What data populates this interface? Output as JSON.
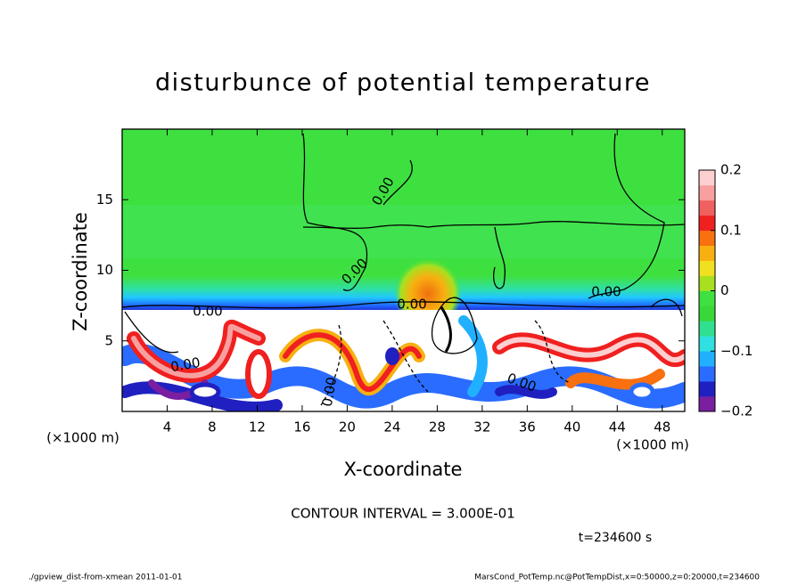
{
  "chart_data": {
    "type": "contour",
    "title": "disturbunce of potential temperature",
    "x_label": "X-coordinate",
    "y_label": "Z-coordinate",
    "x_unit_left": "(×1000 m)",
    "x_unit_right": "(×1000 m)",
    "xlim": [
      0,
      50
    ],
    "xticks": [
      4,
      8,
      12,
      16,
      20,
      24,
      28,
      32,
      36,
      40,
      44,
      48
    ],
    "ylim": [
      0,
      20
    ],
    "yticks": [
      5,
      10,
      15
    ],
    "colorbar": {
      "lim": [
        -0.2,
        0.2
      ],
      "ticks": [
        {
          "value": -0.2,
          "label": "−0.2"
        },
        {
          "value": -0.1,
          "label": "−0.1"
        },
        0,
        0.1,
        0.2
      ],
      "colors": [
        "#7a1fa0",
        "#2020c0",
        "#2a6cff",
        "#20b0ff",
        "#30e0e0",
        "#30e090",
        "#38d838",
        "#40e040",
        "#a8e020",
        "#f0e020",
        "#f8b010",
        "#f87010",
        "#f02020",
        "#f06060",
        "#f8a0a0",
        "#fcd0d0"
      ]
    },
    "contour_label": "0.00",
    "contour_interval": "CONTOUR INTERVAL = 3.000E-01",
    "time_label": "t=234600 s",
    "footer_left": "./gpview_dist-from-xmean   2011-01-01",
    "footer_right": "MarsCond_PotTemp.nc@PotTempDist,x=0:50000,z=0:20000,t=234600"
  }
}
